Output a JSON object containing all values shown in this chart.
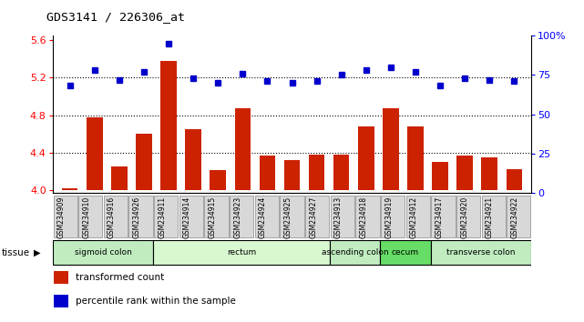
{
  "title": "GDS3141 / 226306_at",
  "samples": [
    "GSM234909",
    "GSM234910",
    "GSM234916",
    "GSM234926",
    "GSM234911",
    "GSM234914",
    "GSM234915",
    "GSM234923",
    "GSM234924",
    "GSM234925",
    "GSM234927",
    "GSM234913",
    "GSM234918",
    "GSM234919",
    "GSM234912",
    "GSM234917",
    "GSM234920",
    "GSM234921",
    "GSM234922"
  ],
  "bar_values": [
    4.02,
    4.78,
    4.25,
    4.6,
    5.38,
    4.65,
    4.22,
    4.87,
    4.37,
    4.32,
    4.38,
    4.38,
    4.68,
    4.87,
    4.68,
    4.3,
    4.37,
    4.35,
    4.23
  ],
  "blue_values": [
    68,
    78,
    72,
    77,
    95,
    73,
    70,
    76,
    71,
    70,
    71,
    75,
    78,
    80,
    77,
    68,
    73,
    72,
    71
  ],
  "ylim_left": [
    3.97,
    5.65
  ],
  "ylim_right": [
    0,
    100
  ],
  "yticks_left": [
    4.0,
    4.4,
    4.8,
    5.2,
    5.6
  ],
  "yticks_right": [
    0,
    25,
    50,
    75,
    100
  ],
  "hlines": [
    4.4,
    4.8,
    5.2
  ],
  "bar_color": "#CC2200",
  "dot_color": "#0000CC",
  "bar_base": 4.0,
  "tissue_groups": [
    {
      "label": "sigmoid colon",
      "start": 0,
      "end": 4,
      "color": "#c0ecc0"
    },
    {
      "label": "rectum",
      "start": 4,
      "end": 11,
      "color": "#d8f8d0"
    },
    {
      "label": "ascending colon",
      "start": 11,
      "end": 13,
      "color": "#c0ecc0"
    },
    {
      "label": "cecum",
      "start": 13,
      "end": 15,
      "color": "#66dd66"
    },
    {
      "label": "transverse colon",
      "start": 15,
      "end": 19,
      "color": "#c0ecc0"
    }
  ],
  "legend_items": [
    {
      "label": "transformed count",
      "color": "#CC2200"
    },
    {
      "label": "percentile rank within the sample",
      "color": "#0000CC"
    }
  ],
  "fig_width": 6.41,
  "fig_height": 3.54,
  "dpi": 100
}
